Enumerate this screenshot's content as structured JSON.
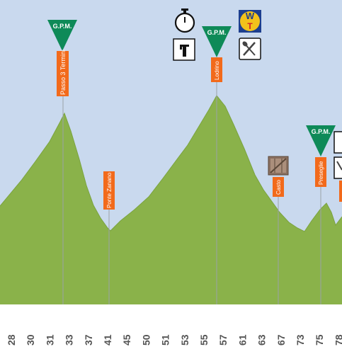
{
  "colors": {
    "sky": "#c9d9ee",
    "terrain": "#8ab24a",
    "terrain_top": "#95bd55",
    "gpm_green": "#0e8a58",
    "place_orange": "#f26a1b",
    "axis_bg": "#ffffff"
  },
  "chart_data": {
    "type": "area",
    "title": "",
    "xlabel": "",
    "ylabel": "",
    "x_ticks": [
      "28",
      "30",
      "31",
      "33",
      "37",
      "41",
      "45",
      "50",
      "51",
      "53",
      "55",
      "57",
      "61",
      "63",
      "67",
      "73",
      "75",
      "78"
    ],
    "kilometers_at_markers": {
      "Passo 3 Termini": "33",
      "Ponte Zanano": "41",
      "Lodrino": "57",
      "Casto": "67",
      "Preseglie": "75"
    }
  },
  "labels": {
    "gpm": "G.P.M.",
    "places": [
      "Passo 3 Termini",
      "Ponte Zanano",
      "Lodrino",
      "Casto",
      "Preseglie"
    ]
  },
  "icons": {
    "timing": "stopwatch-icon",
    "sprint": "intermediate-sprint-icon",
    "feed": "feed-zone-icon",
    "wt": "wt-logo-icon",
    "level_crossing": "level-crossing-icon"
  }
}
